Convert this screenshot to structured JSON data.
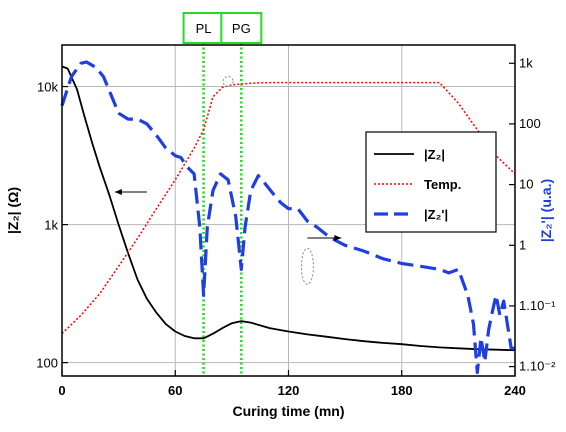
{
  "chart_data": {
    "type": "line",
    "xlabel": "Curing time (mn)",
    "ylabel_left": "|Z₂| (Ω)",
    "ylabel_right": "|Z₂'| (u.a.)",
    "xlim": [
      0,
      240
    ],
    "x_ticks": [
      "0",
      "60",
      "120",
      "180",
      "240"
    ],
    "y_left_scale": "log",
    "y_left_lim": [
      80,
      20000
    ],
    "y_left_ticks": [
      "100",
      "1k",
      "10k"
    ],
    "y_right_scale": "log",
    "y_right_lim": [
      0.007,
      2000
    ],
    "y_right_ticks": [
      "1.10⁻²",
      "1.10⁻¹",
      "1",
      "10",
      "100",
      "1k"
    ],
    "grid": true,
    "legend_position": "right-middle",
    "markers": [
      {
        "label": "PL",
        "x": 75
      },
      {
        "label": "PG",
        "x": 95
      }
    ],
    "series": [
      {
        "name": "|Z₂|",
        "axis": "left",
        "color": "#000000",
        "style": "solid",
        "x": [
          0,
          3,
          8,
          12,
          16,
          20,
          25,
          30,
          35,
          40,
          45,
          50,
          55,
          60,
          65,
          70,
          75,
          80,
          85,
          90,
          95,
          100,
          105,
          110,
          120,
          130,
          140,
          150,
          160,
          170,
          180,
          190,
          200,
          210,
          220,
          230,
          240
        ],
        "y": [
          14000,
          13500,
          9500,
          6000,
          3900,
          2600,
          1650,
          1000,
          620,
          400,
          290,
          230,
          190,
          168,
          156,
          150,
          150,
          162,
          178,
          193,
          200,
          195,
          186,
          178,
          168,
          160,
          154,
          148,
          143,
          139,
          136,
          132,
          129,
          127,
          125,
          124,
          123
        ]
      },
      {
        "name": "Temp.",
        "axis": "right",
        "color": "#ff0000",
        "style": "dotted",
        "x": [
          0,
          10,
          20,
          30,
          40,
          50,
          60,
          70,
          75,
          80,
          85,
          90,
          100,
          110,
          120,
          130,
          140,
          150,
          160,
          170,
          180,
          190,
          200,
          210,
          220,
          230,
          240
        ],
        "y": [
          0.035,
          0.07,
          0.16,
          0.45,
          1.3,
          4,
          12,
          40,
          80,
          280,
          400,
          440,
          470,
          480,
          480,
          480,
          480,
          480,
          480,
          480,
          480,
          480,
          480,
          220,
          80,
          30,
          15
        ]
      },
      {
        "name": "|Z₂'|",
        "axis": "right",
        "color": "#1f3fe0",
        "style": "dashed",
        "x": [
          0,
          5,
          10,
          13,
          18,
          22,
          26,
          30,
          35,
          40,
          45,
          50,
          55,
          60,
          63,
          66,
          70,
          73,
          75,
          77,
          80,
          84,
          88,
          92,
          95,
          97,
          100,
          104,
          108,
          112,
          116,
          120,
          125,
          130,
          135,
          140,
          145,
          150,
          160,
          170,
          180,
          190,
          200,
          205,
          210,
          215,
          218,
          220,
          222,
          224,
          226,
          228,
          230,
          232,
          234,
          236,
          238,
          240
        ],
        "y": [
          200,
          600,
          1000,
          1050,
          850,
          600,
          300,
          150,
          120,
          120,
          100,
          65,
          40,
          30,
          28,
          20,
          15,
          2,
          0.15,
          2,
          8,
          15,
          12,
          3,
          0.4,
          2,
          8,
          14,
          10,
          7,
          5,
          4,
          4,
          2.5,
          2,
          1.5,
          1.2,
          1.0,
          0.8,
          0.6,
          0.5,
          0.45,
          0.4,
          0.35,
          0.4,
          0.15,
          0.05,
          0.008,
          0.03,
          0.012,
          0.04,
          0.08,
          0.15,
          0.07,
          0.12,
          0.05,
          0.02,
          0.02
        ]
      }
    ]
  }
}
